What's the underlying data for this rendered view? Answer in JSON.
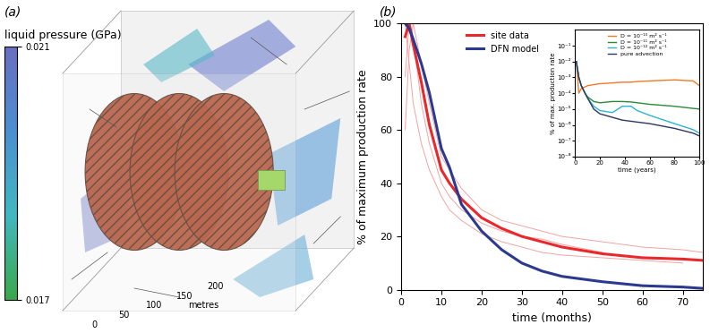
{
  "panel_a": {
    "panel_label": "(a)",
    "colorbar": {
      "label": "liquid pressure (GPa)",
      "range": [
        0.017,
        0.021
      ],
      "ticks": [
        0.017,
        0.021
      ]
    },
    "distance_axis": {
      "label": "metres",
      "range": [
        0,
        200
      ],
      "ticks": [
        0,
        50,
        100,
        150,
        200
      ]
    }
  },
  "chart_data": {
    "type": "line",
    "panel_label": "(b)",
    "x_label": "time (months)",
    "y_label": "% of maximum production rate",
    "xlim": [
      0,
      75
    ],
    "xticks": [
      0,
      10,
      20,
      30,
      40,
      50,
      60,
      70
    ],
    "ylim": [
      0,
      100
    ],
    "yticks": [
      0,
      20,
      40,
      60,
      80,
      100
    ],
    "legend": "upper left",
    "x": [
      1,
      2,
      3,
      5,
      7,
      10,
      12,
      15,
      20,
      25,
      30,
      35,
      40,
      50,
      60,
      70,
      75
    ],
    "series": [
      {
        "name": "site data",
        "color": "#e8282b",
        "values": [
          95,
          100,
          92,
          78,
          62,
          45,
          40,
          34,
          27,
          23,
          20,
          18,
          16,
          13.5,
          12,
          11.5,
          11
        ]
      },
      {
        "name": "DFN model",
        "color": "#2b3a8f",
        "values": [
          100,
          98,
          94,
          85,
          74,
          53,
          46,
          32,
          22,
          15,
          10,
          7,
          5,
          3,
          1.5,
          1,
          0.5
        ]
      }
    ],
    "individual_sites": [
      {
        "color": "#f2a3a3",
        "values": [
          80,
          100,
          95,
          70,
          55,
          40,
          35,
          30,
          25,
          22,
          20,
          19,
          17,
          14,
          null,
          null,
          null
        ]
      },
      {
        "color": "#f2a3a3",
        "values": [
          60,
          90,
          100,
          85,
          70,
          50,
          45,
          38,
          30,
          26,
          24,
          22,
          20,
          18,
          16,
          15,
          14
        ]
      },
      {
        "color": "#f2a3a3",
        "values": [
          100,
          85,
          70,
          55,
          45,
          35,
          30,
          26,
          21,
          18,
          16,
          14,
          13,
          12,
          11,
          10,
          null
        ]
      }
    ],
    "inset": {
      "type": "line",
      "log": "y",
      "x_label": "time (years)",
      "y_label": "% of max. production rate",
      "xlim": [
        0,
        100
      ],
      "xticks": [
        0,
        20,
        40,
        60,
        80,
        100
      ],
      "ylim": [
        1e-08,
        1
      ],
      "yticks": [
        {
          "value": 1e-08,
          "label": "10⁻⁸"
        },
        {
          "value": 1e-07,
          "label": "10⁻⁷"
        },
        {
          "value": 1e-06,
          "label": "10⁻⁶"
        },
        {
          "value": 1e-05,
          "label": "10⁻⁵"
        },
        {
          "value": 0.0001,
          "label": "10⁻⁴"
        },
        {
          "value": 0.001,
          "label": "10⁻³"
        },
        {
          "value": 0.01,
          "label": "10⁻²"
        },
        {
          "value": 0.1,
          "label": "10⁻¹"
        }
      ],
      "legend": "upper center",
      "x": [
        1,
        3,
        5,
        8,
        10,
        15,
        20,
        30,
        38,
        45,
        50,
        60,
        80,
        95,
        100
      ],
      "series": [
        {
          "name": "D = 10⁻¹⁰ m² s⁻¹",
          "color": "#f07a2a",
          "values": [
            0.01,
            0.0001,
            0.0002,
            0.00025,
            0.0003,
            0.00035,
            0.0004,
            0.00045,
            0.0005,
            0.0005,
            0.00055,
            0.0006,
            0.0007,
            0.0006,
            0.0003
          ]
        },
        {
          "name": "D = 10⁻¹¹ m² s⁻¹",
          "color": "#2a8a3a",
          "values": [
            0.01,
            0.001,
            0.0003,
            0.0001,
            6e-05,
            3e-05,
            2.5e-05,
            3e-05,
            3e-05,
            2.8e-05,
            2.5e-05,
            2e-05,
            1.5e-05,
            1.1e-05,
            1e-05
          ]
        },
        {
          "name": "D = 10⁻¹² m² s⁻¹",
          "color": "#2ab5d0",
          "values": [
            0.01,
            0.001,
            0.0003,
            0.0001,
            5e-05,
            1.5e-05,
            8e-06,
            6e-06,
            1.5e-05,
            1.5e-05,
            8e-06,
            4e-06,
            1.2e-06,
            5e-07,
            3e-07
          ]
        },
        {
          "name": "pure advection",
          "color": "#2e3560",
          "values": [
            0.01,
            0.001,
            0.0003,
            0.0001,
            5e-05,
            1e-05,
            5e-06,
            3e-06,
            2e-06,
            1.7e-06,
            1.5e-06,
            1.2e-06,
            6e-07,
            3e-07,
            2e-07
          ]
        }
      ]
    }
  }
}
